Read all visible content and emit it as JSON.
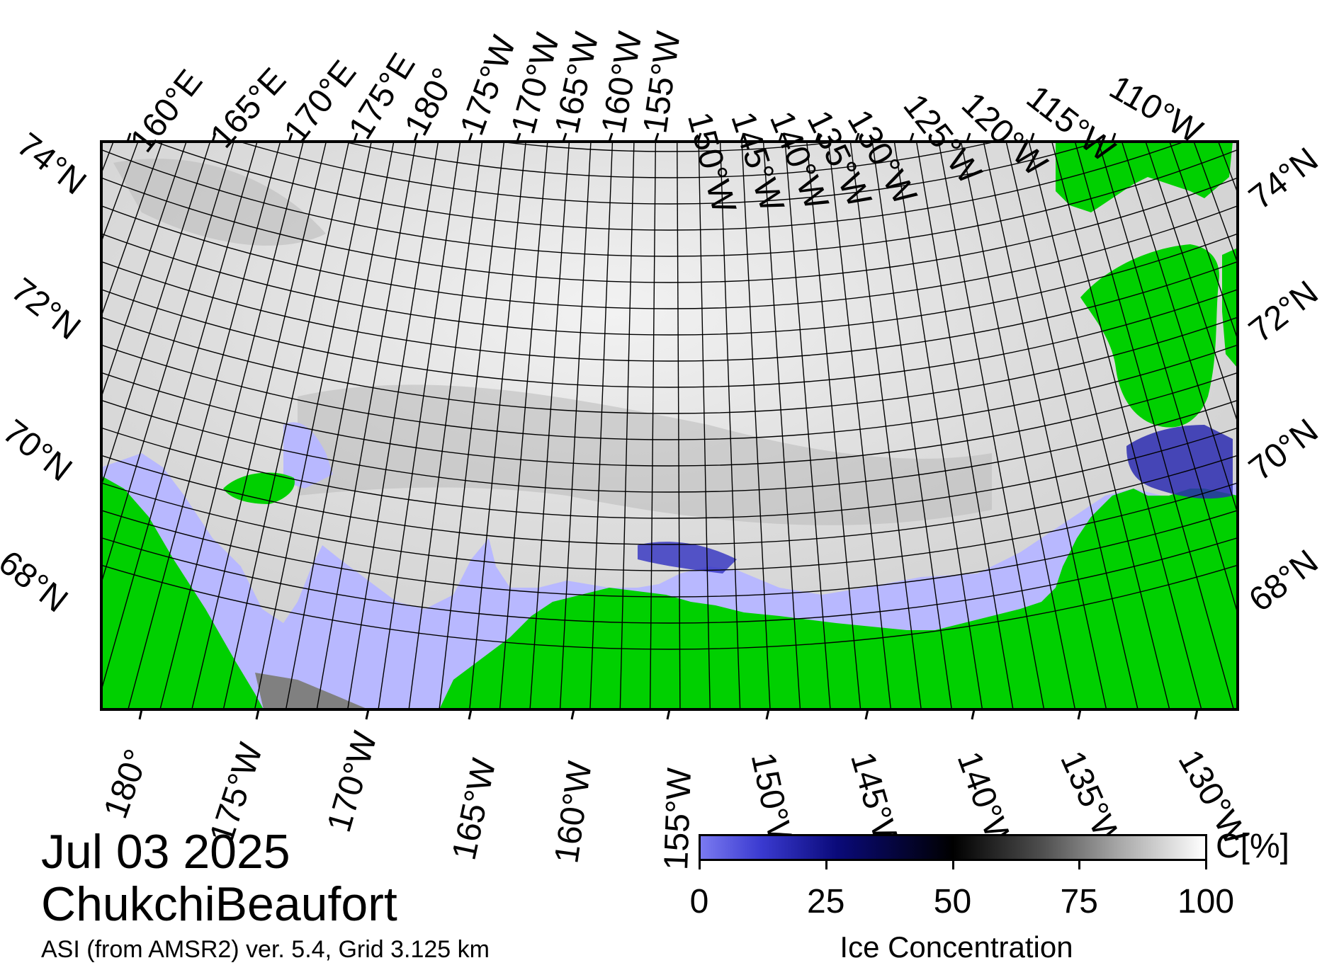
{
  "title": {
    "date": "Jul 03 2025",
    "region": "ChukchiBeaufort",
    "source": "ASI (from AMSR2) ver. 5.4,  Grid 3.125 km"
  },
  "map": {
    "top_longitude_labels": [
      "160°E",
      "165°E",
      "170°E",
      "175°E",
      "180°",
      "175°W",
      "170°W",
      "165°W",
      "160°W",
      "155°W",
      "150°W",
      "145°W",
      "140°W",
      "135°W",
      "130°W",
      "125°W",
      "120°W",
      "115°W",
      "110°W"
    ],
    "bottom_longitude_labels": [
      "180°",
      "175°W",
      "170°W",
      "165°W",
      "160°W",
      "155°W",
      "150°W",
      "145°W",
      "140°W",
      "135°W",
      "130°W"
    ],
    "left_latitude_labels": [
      "74°N",
      "72°N",
      "70°N",
      "68°N"
    ],
    "right_latitude_labels": [
      "74°N",
      "72°N",
      "70°N",
      "68°N"
    ],
    "colors": {
      "land": "#00d000",
      "open_water": "#b8b8ff",
      "no_data": "#808080",
      "frame": "#000000"
    }
  },
  "colorbar": {
    "ticks": [
      "0",
      "25",
      "50",
      "75",
      "100"
    ],
    "unit": "C[%]",
    "title": "Ice Concentration"
  }
}
